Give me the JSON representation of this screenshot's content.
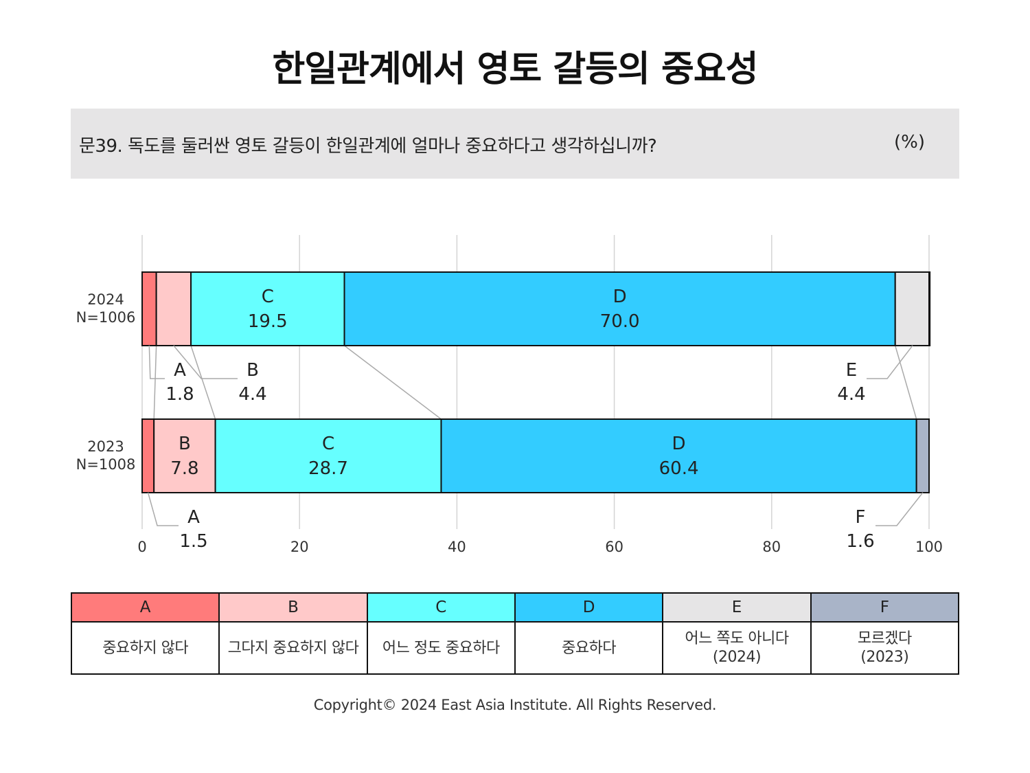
{
  "title": "한일관계에서 영토 갈등의 중요성",
  "question": "문39. 독도를 둘러싼 영토 갈등이 한일관계에 얼마나 중요하다고 생각하십니까?",
  "unit": "(%)",
  "colors": {
    "A": "#ff7b7b",
    "B": "#ffc9c9",
    "C": "#66ffff",
    "D": "#33ccff",
    "E": "#e6e5e6",
    "F": "#a9b4c8"
  },
  "chart_data": {
    "type": "bar",
    "orientation": "horizontal",
    "stacked": true,
    "xlim": [
      0,
      100
    ],
    "xticks": [
      "0",
      "20",
      "40",
      "60",
      "80",
      "100"
    ],
    "grid": true,
    "rows": [
      {
        "year": "2024",
        "n": "N=1006",
        "segments": [
          {
            "key": "A",
            "value": 1.8
          },
          {
            "key": "B",
            "value": 4.4
          },
          {
            "key": "C",
            "value": 19.5
          },
          {
            "key": "D",
            "value": 70.0
          },
          {
            "key": "E",
            "value": 4.4
          }
        ]
      },
      {
        "year": "2023",
        "n": "N=1008",
        "segments": [
          {
            "key": "A",
            "value": 1.5
          },
          {
            "key": "B",
            "value": 7.8
          },
          {
            "key": "C",
            "value": 28.7
          },
          {
            "key": "D",
            "value": 60.4
          },
          {
            "key": "F",
            "value": 1.6
          }
        ]
      }
    ]
  },
  "legend": [
    {
      "key": "A",
      "label": "중요하지 않다",
      "sub": ""
    },
    {
      "key": "B",
      "label": "그다지 중요하지 않다",
      "sub": ""
    },
    {
      "key": "C",
      "label": "어느 정도 중요하다",
      "sub": ""
    },
    {
      "key": "D",
      "label": "중요하다",
      "sub": ""
    },
    {
      "key": "E",
      "label": "어느 쪽도 아니다",
      "sub": "(2024)"
    },
    {
      "key": "F",
      "label": "모르겠다",
      "sub": "(2023)"
    }
  ],
  "copyright": "Copyright© 2024 East Asia Institute. All Rights Reserved."
}
